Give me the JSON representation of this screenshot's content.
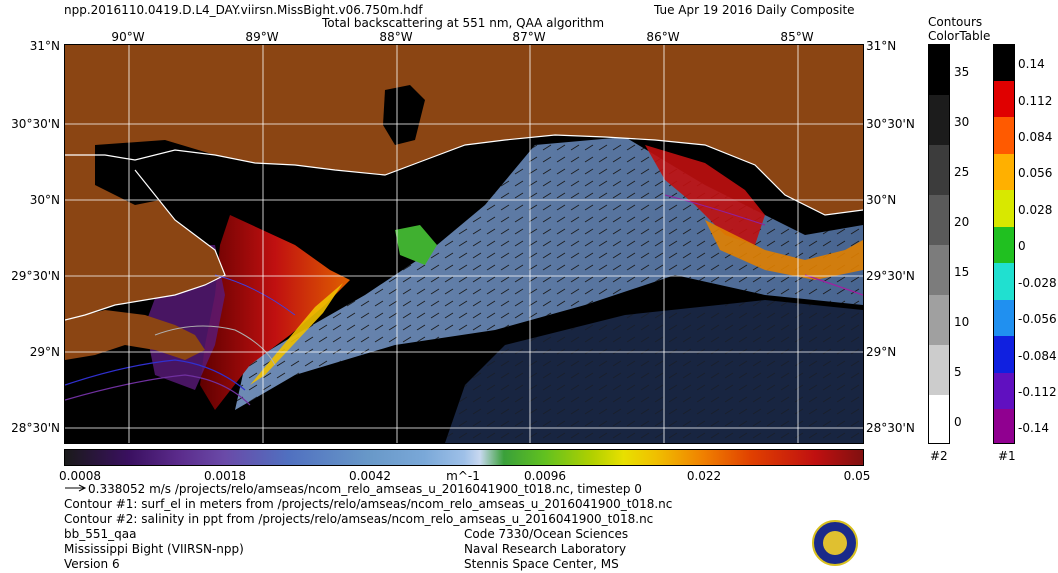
{
  "header": {
    "filename": "npp.2016110.0419.D.L4_DAY.viirsn.MissBight.v06.750m.hdf",
    "date": "Tue Apr 19 2016 Daily Composite",
    "product_title": "Total backscattering at 551 nm, QAA algorithm"
  },
  "map": {
    "lon_labels": [
      "90°W",
      "89°W",
      "88°W",
      "87°W",
      "86°W",
      "85°W"
    ],
    "lat_labels": [
      "31°N",
      "30°30'N",
      "30°N",
      "29°30'N",
      "29°N",
      "28°30'N"
    ],
    "colors": {
      "land": "#8b4513",
      "water_nodata": "#000000",
      "grid": "#ffffff"
    }
  },
  "colorbar": {
    "ticks": [
      "0.0008",
      "0.0018",
      "0.0042",
      "m^-1",
      "0.0096",
      "0.022",
      "0.05"
    ]
  },
  "contours_panel": {
    "title_line1": "Contours",
    "title_line2": "ColorTable",
    "salinity_labels": [
      "35",
      "30",
      "25",
      "20",
      "15",
      "10",
      "5",
      "0"
    ],
    "salinity_colorbar_id": "#2",
    "ssh_labels": [
      "0.14",
      "0.112",
      "0.084",
      "0.056",
      "0.028",
      "0",
      "-0.028",
      "-0.056",
      "-0.084",
      "-0.112",
      "-0.14"
    ],
    "ssh_colorbar_id": "#1"
  },
  "footer": {
    "vector_line": "0.338052 m/s /projects/relo/amseas/ncom_relo_amseas_u_2016041900_t018.nc, timestep 0",
    "contour1_line": "Contour #1: surf_el in meters from /projects/relo/amseas/ncom_relo_amseas_u_2016041900_t018.nc",
    "contour2_line": "Contour #2: salinity in ppt from /projects/relo/amseas/ncom_relo_amseas_u_2016041900_t018.nc",
    "product_code": "bb_551_qaa",
    "region": "Mississippi Bight (VIIRSN-npp)",
    "version": "Version 6",
    "org_line1": "Code 7330/Ocean Sciences",
    "org_line2": "Naval Research Laboratory",
    "org_line3": "Stennis Space Center, MS"
  }
}
